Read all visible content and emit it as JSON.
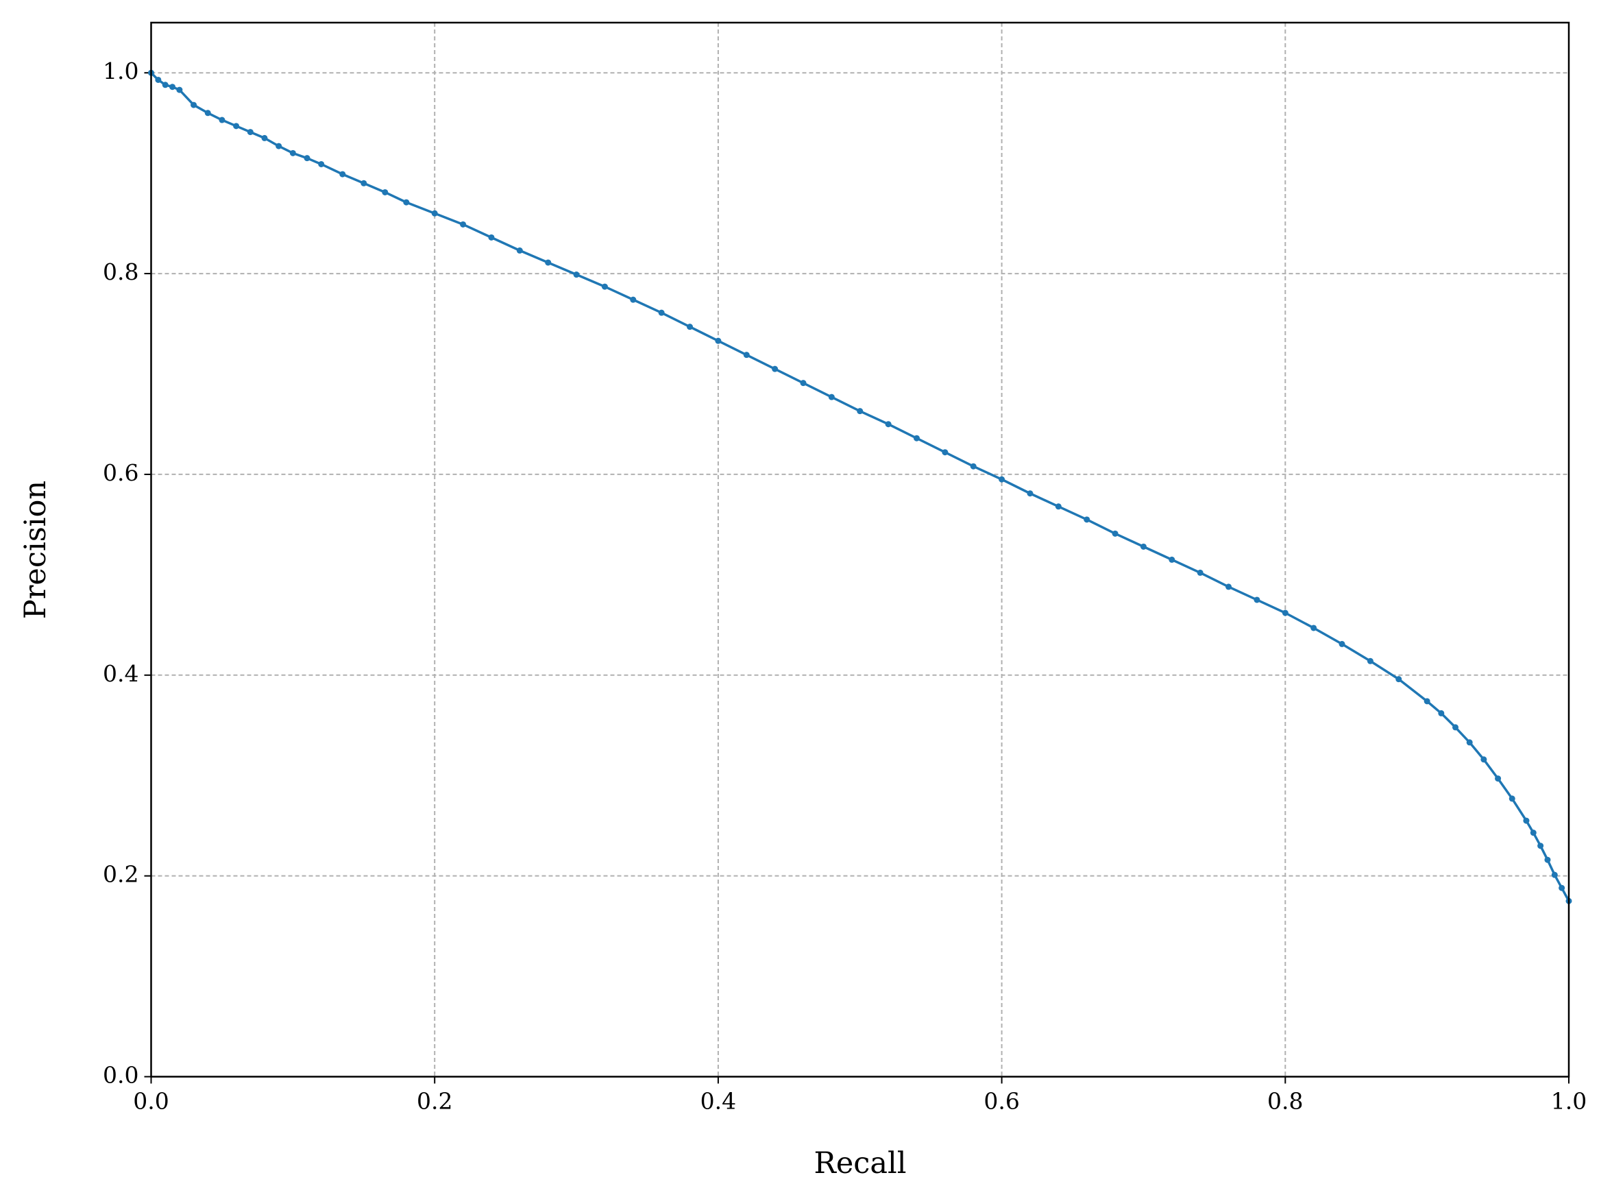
{
  "chart_data": {
    "type": "line",
    "xlabel": "Recall",
    "ylabel": "Precision",
    "x": [
      0,
      0.005,
      0.01,
      0.015,
      0.02,
      0.03,
      0.04,
      0.05,
      0.06,
      0.07,
      0.08,
      0.09,
      0.1,
      0.11,
      0.12,
      0.135,
      0.15,
      0.165,
      0.18,
      0.2,
      0.22,
      0.24,
      0.26,
      0.28,
      0.3,
      0.32,
      0.34,
      0.36,
      0.38,
      0.4,
      0.42,
      0.44,
      0.46,
      0.48,
      0.5,
      0.52,
      0.54,
      0.56,
      0.58,
      0.6,
      0.62,
      0.64,
      0.66,
      0.68,
      0.7,
      0.72,
      0.74,
      0.76,
      0.78,
      0.8,
      0.82,
      0.84,
      0.86,
      0.88,
      0.9,
      0.91,
      0.92,
      0.93,
      0.94,
      0.95,
      0.96,
      0.97,
      0.975,
      0.98,
      0.985,
      0.99,
      0.995,
      1.0
    ],
    "series": [
      {
        "color": "#1f77b4",
        "values": [
          1.0,
          0.993,
          0.988,
          0.986,
          0.983,
          0.968,
          0.96,
          0.953,
          0.947,
          0.941,
          0.935,
          0.927,
          0.92,
          0.915,
          0.909,
          0.899,
          0.89,
          0.881,
          0.871,
          0.86,
          0.849,
          0.836,
          0.823,
          0.811,
          0.799,
          0.787,
          0.774,
          0.761,
          0.747,
          0.733,
          0.719,
          0.705,
          0.691,
          0.677,
          0.663,
          0.65,
          0.636,
          0.622,
          0.608,
          0.595,
          0.581,
          0.568,
          0.555,
          0.541,
          0.528,
          0.515,
          0.502,
          0.488,
          0.475,
          0.462,
          0.447,
          0.431,
          0.414,
          0.396,
          0.374,
          0.362,
          0.348,
          0.333,
          0.316,
          0.297,
          0.277,
          0.255,
          0.243,
          0.23,
          0.216,
          0.201,
          0.188,
          0.175
        ]
      }
    ],
    "marker": true,
    "xlim": [
      0,
      1
    ],
    "ylim": [
      0,
      1.05
    ],
    "xticks": [
      {
        "value": 0,
        "label": "0.0"
      },
      0.2,
      0.4,
      0.6,
      0.8,
      {
        "value": 1,
        "label": "1.0"
      }
    ],
    "yticks": [
      {
        "value": 0,
        "label": "0.0"
      },
      0.2,
      0.4,
      0.6,
      0.8,
      {
        "value": 1,
        "label": "1.0"
      }
    ],
    "grid": true
  }
}
